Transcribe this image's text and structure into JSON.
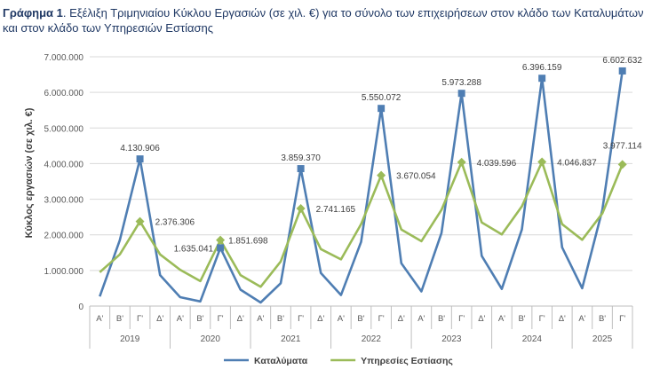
{
  "caption": {
    "label": "Γράφημα 1",
    "text": ". Εξέλιξη Τριμηνιαίου Κύκλου Εργασιών (σε χιλ. €) για το σύνολο των επιχειρήσεων στον κλάδο των Καταλυμάτων και στον κλάδο των Υπηρεσιών Εστίασης"
  },
  "chart_data": {
    "type": "line",
    "ylabel": "Κύκλος εργασιών (σε χιλ. €)",
    "ylim": [
      0,
      7000000
    ],
    "yticks": [
      0,
      1000000,
      2000000,
      3000000,
      4000000,
      5000000,
      6000000,
      7000000
    ],
    "ytick_labels": [
      "0",
      "1.000.000",
      "2.000.000",
      "3.000.000",
      "4.000.000",
      "5.000.000",
      "6.000.000",
      "7.000.000"
    ],
    "grid": true,
    "legend_position": "bottom",
    "years": [
      "2019",
      "2020",
      "2021",
      "2022",
      "2023",
      "2024",
      "2025"
    ],
    "quarter_labels": [
      "Α'",
      "Β'",
      "Γ'",
      "Δ'"
    ],
    "categories": [
      "Α'",
      "Β'",
      "Γ'",
      "Δ'",
      "Α'",
      "Β'",
      "Γ'",
      "Δ'",
      "Α'",
      "Β'",
      "Γ'",
      "Δ'",
      "Α'",
      "Β'",
      "Γ'",
      "Δ'",
      "Α'",
      "Β'",
      "Γ'",
      "Δ'",
      "Α'",
      "Β'",
      "Γ'",
      "Δ'",
      "Α'",
      "Β'",
      "Γ'"
    ],
    "series": [
      {
        "name": "Καταλύματα",
        "color": "#4f7eb3",
        "values": [
          270000,
          1850000,
          4130906,
          870000,
          250000,
          130000,
          1635041,
          460000,
          100000,
          640000,
          3859370,
          930000,
          310000,
          1800000,
          5550072,
          1200000,
          410000,
          2050000,
          5973288,
          1410000,
          480000,
          2150000,
          6396159,
          1650000,
          500000,
          2700000,
          6602632
        ],
        "labels": [
          {
            "index": 2,
            "text": "4.130.906"
          },
          {
            "index": 6,
            "text": "1.635.041"
          },
          {
            "index": 10,
            "text": "3.859.370"
          },
          {
            "index": 14,
            "text": "5.550.072"
          },
          {
            "index": 18,
            "text": "5.973.288"
          },
          {
            "index": 22,
            "text": "6.396.159"
          },
          {
            "index": 26,
            "text": "6.602.632"
          }
        ]
      },
      {
        "name": "Υπηρεσίες Εστίασης",
        "color": "#9bbb59",
        "values": [
          950000,
          1450000,
          2376306,
          1450000,
          1020000,
          700000,
          1851698,
          870000,
          540000,
          1250000,
          2741165,
          1600000,
          1310000,
          2300000,
          3670054,
          2150000,
          1820000,
          2700000,
          4039596,
          2350000,
          2010000,
          2800000,
          4046837,
          2300000,
          1860000,
          2600000,
          3977114
        ],
        "labels": [
          {
            "index": 2,
            "text": "2.376.306"
          },
          {
            "index": 6,
            "text": "1.851.698"
          },
          {
            "index": 10,
            "text": "2.741.165"
          },
          {
            "index": 14,
            "text": "3.670.054"
          },
          {
            "index": 18,
            "text": "4.039.596"
          },
          {
            "index": 22,
            "text": "4.046.837"
          },
          {
            "index": 26,
            "text": "3.977.114"
          }
        ]
      }
    ]
  }
}
